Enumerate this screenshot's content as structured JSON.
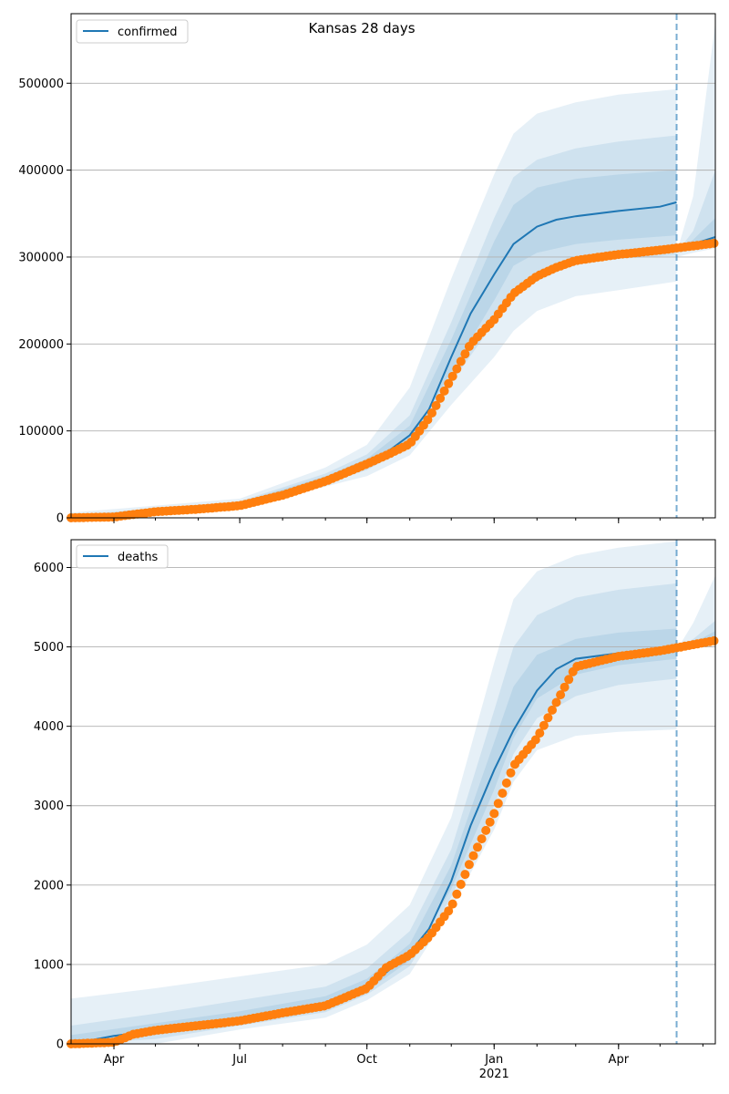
{
  "chart_data": [
    {
      "type": "line",
      "title": "Kansas 28 days",
      "legend": [
        "confirmed"
      ],
      "legend_position": "top-left",
      "grid": "horizontal",
      "ylim": [
        0,
        580000
      ],
      "yticks": [
        0,
        100000,
        200000,
        300000,
        400000,
        500000
      ],
      "xlim": [
        "2020-03-01",
        "2021-06-10"
      ],
      "forecast_start": "2021-05-13",
      "series": [
        {
          "name": "confirmed",
          "kind": "model",
          "x": [
            "2020-03-01",
            "2020-04-01",
            "2020-05-01",
            "2020-06-01",
            "2020-07-01",
            "2020-08-01",
            "2020-09-01",
            "2020-10-01",
            "2020-10-15",
            "2020-11-01",
            "2020-11-15",
            "2020-12-01",
            "2020-12-15",
            "2021-01-01",
            "2021-01-15",
            "2021-02-01",
            "2021-02-15",
            "2021-03-01",
            "2021-04-01",
            "2021-05-01",
            "2021-05-13"
          ],
          "y": [
            0,
            500,
            7000,
            11000,
            16000,
            28000,
            45000,
            63000,
            75000,
            95000,
            125000,
            185000,
            235000,
            280000,
            315000,
            335000,
            343000,
            347000,
            353000,
            358000,
            363000
          ]
        },
        {
          "name": "forecast",
          "kind": "model",
          "x": [
            "2021-05-13",
            "2021-05-25",
            "2021-06-10"
          ],
          "y": [
            310000,
            315000,
            323000
          ]
        },
        {
          "name": "observed",
          "kind": "points",
          "x": [
            "2020-03-01",
            "2020-04-01",
            "2020-05-01",
            "2020-06-01",
            "2020-07-01",
            "2020-08-01",
            "2020-09-01",
            "2020-10-01",
            "2020-10-15",
            "2020-11-01",
            "2020-11-15",
            "2020-12-01",
            "2020-12-15",
            "2021-01-01",
            "2021-01-15",
            "2021-02-01",
            "2021-02-15",
            "2021-03-01",
            "2021-04-01",
            "2021-05-01",
            "2021-06-10"
          ],
          "y": [
            0,
            1000,
            7000,
            10000,
            14000,
            26000,
            42000,
            62000,
            72000,
            85000,
            115000,
            160000,
            200000,
            228000,
            258000,
            278000,
            288000,
            296000,
            303000,
            308000,
            316000
          ]
        }
      ],
      "bands": [
        {
          "level": "outer",
          "x": [
            "2020-03-01",
            "2020-07-01",
            "2020-09-01",
            "2020-10-01",
            "2020-11-01",
            "2020-12-01",
            "2021-01-01",
            "2021-01-15",
            "2021-02-01",
            "2021-03-01",
            "2021-04-01",
            "2021-05-13"
          ],
          "lower": [
            0,
            13000,
            36000,
            48000,
            72000,
            130000,
            185000,
            215000,
            238000,
            255000,
            262000,
            272000
          ],
          "upper": [
            6000,
            22000,
            58000,
            84000,
            150000,
            275000,
            395000,
            442000,
            465000,
            478000,
            487000,
            493000
          ]
        },
        {
          "level": "middle",
          "x": [
            "2020-03-01",
            "2020-07-01",
            "2020-09-01",
            "2020-10-01",
            "2020-11-01",
            "2020-12-01",
            "2021-01-01",
            "2021-01-15",
            "2021-02-01",
            "2021-03-01",
            "2021-04-01",
            "2021-05-13"
          ],
          "lower": [
            0,
            14000,
            40000,
            55000,
            82000,
            155000,
            225000,
            262000,
            282000,
            292000,
            298000,
            302000
          ],
          "upper": [
            3000,
            19000,
            51000,
            73000,
            118000,
            225000,
            345000,
            392000,
            412000,
            425000,
            433000,
            440000
          ]
        },
        {
          "level": "inner",
          "x": [
            "2020-03-01",
            "2020-07-01",
            "2020-09-01",
            "2020-10-01",
            "2020-11-01",
            "2020-12-01",
            "2021-01-01",
            "2021-01-15",
            "2021-02-01",
            "2021-03-01",
            "2021-04-01",
            "2021-05-13"
          ],
          "lower": [
            0,
            15000,
            42000,
            59000,
            88000,
            168000,
            250000,
            290000,
            305000,
            315000,
            320000,
            325000
          ],
          "upper": [
            1500,
            17500,
            48000,
            68000,
            106000,
            205000,
            318000,
            360000,
            380000,
            390000,
            395000,
            400000
          ]
        }
      ],
      "forecast_bands": [
        {
          "x": [
            "2021-05-13",
            "2021-05-25",
            "2021-06-10"
          ],
          "lower": [
            300000,
            305000,
            310000
          ],
          "upper": [
            305000,
            370000,
            570000
          ]
        },
        {
          "x": [
            "2021-05-13",
            "2021-05-25",
            "2021-06-10"
          ],
          "lower": [
            305000,
            308000,
            312000
          ],
          "upper": [
            305000,
            330000,
            400000
          ]
        },
        {
          "x": [
            "2021-05-13",
            "2021-05-25",
            "2021-06-10"
          ],
          "lower": [
            308000,
            311000,
            315000
          ],
          "upper": [
            308000,
            320000,
            345000
          ]
        }
      ]
    },
    {
      "type": "line",
      "legend": [
        "deaths"
      ],
      "legend_position": "top-left",
      "grid": "horizontal",
      "ylim": [
        0,
        6350
      ],
      "yticks": [
        0,
        1000,
        2000,
        3000,
        4000,
        5000,
        6000
      ],
      "xlim": [
        "2020-03-01",
        "2021-06-10"
      ],
      "xticks": [
        {
          "date": "2020-04-01",
          "label": "Apr"
        },
        {
          "date": "2020-07-01",
          "label": "Jul"
        },
        {
          "date": "2020-10-01",
          "label": "Oct"
        },
        {
          "date": "2021-01-01",
          "label": "Jan",
          "sublabel": "2021"
        },
        {
          "date": "2021-04-01",
          "label": "Apr"
        }
      ],
      "forecast_start": "2021-05-13",
      "series": [
        {
          "name": "deaths",
          "kind": "model",
          "x": [
            "2020-03-01",
            "2020-04-01",
            "2020-05-01",
            "2020-06-01",
            "2020-07-01",
            "2020-08-01",
            "2020-09-01",
            "2020-10-01",
            "2020-10-15",
            "2020-11-01",
            "2020-11-15",
            "2020-12-01",
            "2020-12-15",
            "2021-01-01",
            "2021-01-15",
            "2021-02-01",
            "2021-02-15",
            "2021-03-01",
            "2021-04-01",
            "2021-05-01",
            "2021-05-13"
          ],
          "y": [
            0,
            100,
            170,
            230,
            300,
            400,
            520,
            740,
            900,
            1150,
            1450,
            2050,
            2750,
            3450,
            3950,
            4450,
            4720,
            4850,
            4920,
            4960,
            4975
          ]
        },
        {
          "name": "forecast",
          "kind": "model",
          "x": [
            "2021-05-13",
            "2021-05-25",
            "2021-06-10"
          ],
          "y": [
            4975,
            5010,
            5080
          ]
        },
        {
          "name": "observed",
          "kind": "points",
          "x": [
            "2020-03-01",
            "2020-04-01",
            "2020-04-15",
            "2020-05-01",
            "2020-06-01",
            "2020-07-01",
            "2020-08-01",
            "2020-09-01",
            "2020-10-01",
            "2020-10-15",
            "2020-11-01",
            "2020-11-15",
            "2020-12-01",
            "2020-12-15",
            "2021-01-01",
            "2021-01-15",
            "2021-02-01",
            "2021-02-15",
            "2021-03-01",
            "2021-04-01",
            "2021-05-01",
            "2021-06-10"
          ],
          "y": [
            0,
            20,
            120,
            170,
            230,
            290,
            390,
            480,
            700,
            960,
            1120,
            1350,
            1720,
            2300,
            2900,
            3500,
            3850,
            4300,
            4750,
            4880,
            4950,
            5080
          ]
        }
      ],
      "bands": [
        {
          "level": "outer",
          "x": [
            "2020-03-01",
            "2020-05-01",
            "2020-07-01",
            "2020-09-01",
            "2020-10-01",
            "2020-11-01",
            "2020-12-01",
            "2021-01-01",
            "2021-01-15",
            "2021-02-01",
            "2021-03-01",
            "2021-04-01",
            "2021-05-13"
          ],
          "lower": [
            0,
            0,
            180,
            330,
            550,
            880,
            1700,
            2700,
            3300,
            3700,
            3880,
            3930,
            3960
          ],
          "upper": [
            570,
            700,
            850,
            1000,
            1250,
            1750,
            2850,
            4800,
            5600,
            5950,
            6150,
            6250,
            6330
          ]
        },
        {
          "level": "middle",
          "x": [
            "2020-03-01",
            "2020-05-01",
            "2020-07-01",
            "2020-09-01",
            "2020-10-01",
            "2020-11-01",
            "2020-12-01",
            "2021-01-01",
            "2021-01-15",
            "2021-02-01",
            "2021-03-01",
            "2021-04-01",
            "2021-05-13"
          ],
          "lower": [
            0,
            60,
            230,
            400,
            620,
            980,
            1850,
            3000,
            3650,
            4100,
            4380,
            4520,
            4600
          ],
          "upper": [
            230,
            380,
            550,
            720,
            950,
            1420,
            2450,
            4200,
            5000,
            5400,
            5620,
            5720,
            5800
          ]
        },
        {
          "level": "inner",
          "x": [
            "2020-03-01",
            "2020-05-01",
            "2020-07-01",
            "2020-09-01",
            "2020-10-01",
            "2020-11-01",
            "2020-12-01",
            "2021-01-01",
            "2021-01-15",
            "2021-02-01",
            "2021-03-01",
            "2021-04-01",
            "2021-05-13"
          ],
          "lower": [
            0,
            120,
            260,
            440,
            670,
            1050,
            1950,
            3200,
            3850,
            4350,
            4650,
            4770,
            4850
          ],
          "upper": [
            110,
            260,
            410,
            600,
            820,
            1260,
            2250,
            3800,
            4500,
            4900,
            5100,
            5180,
            5230
          ]
        }
      ],
      "forecast_bands": [
        {
          "x": [
            "2021-05-13",
            "2021-05-25",
            "2021-06-10"
          ],
          "lower": [
            4950,
            4980,
            5040
          ],
          "upper": [
            4960,
            5300,
            5900
          ]
        },
        {
          "x": [
            "2021-05-13",
            "2021-05-25",
            "2021-06-10"
          ],
          "lower": [
            4965,
            4995,
            5060
          ],
          "upper": [
            4970,
            5100,
            5330
          ]
        },
        {
          "x": [
            "2021-05-13",
            "2021-05-25",
            "2021-06-10"
          ],
          "lower": [
            4970,
            5000,
            5070
          ],
          "upper": [
            4975,
            5050,
            5200
          ]
        }
      ]
    }
  ]
}
